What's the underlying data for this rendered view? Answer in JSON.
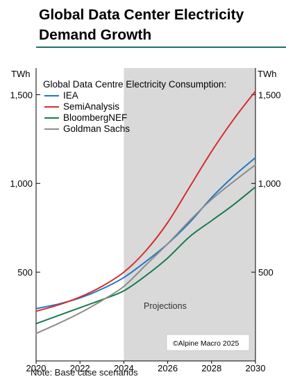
{
  "title_line1": "Global Data Center Electricity",
  "title_line2": "Demand Growth",
  "note": "Note: Base case scenarios",
  "chart_data": {
    "type": "line",
    "unit_left": "TWh",
    "unit_right": "TWh",
    "legend_title": "Global Data Centre Electricity Consumption:",
    "legend_position": "top-left",
    "projection_label": "Projections",
    "projection_start": 2024,
    "copyright": "©Alpine Macro 2025",
    "xlim": [
      2020,
      2030
    ],
    "ylim": [
      0,
      1650
    ],
    "x_ticks": [
      "2020",
      "2022",
      "2024",
      "2026",
      "2028",
      "2030"
    ],
    "y_ticks": [
      500,
      1000,
      1500
    ],
    "y_tick_labels": [
      "500",
      "1,000",
      "1,500"
    ],
    "grid": false,
    "series": [
      {
        "name": "IEA",
        "color": "#1f77c4",
        "x": [
          2020,
          2021,
          2022,
          2023,
          2024,
          2025,
          2026,
          2027,
          2028,
          2029,
          2030
        ],
        "y": [
          295,
          320,
          355,
          405,
          470,
          560,
          660,
          780,
          920,
          1040,
          1145
        ]
      },
      {
        "name": "SemiAnalysis",
        "color": "#d62d2d",
        "x": [
          2020,
          2021,
          2022,
          2023,
          2024,
          2025,
          2026,
          2027,
          2028,
          2029,
          2030
        ],
        "y": [
          280,
          315,
          360,
          420,
          500,
          620,
          780,
          980,
          1180,
          1360,
          1520
        ]
      },
      {
        "name": "BloombergNEF",
        "color": "#1a7a4c",
        "x": [
          2020,
          2021,
          2022,
          2023,
          2024,
          2025,
          2026,
          2027,
          2028,
          2029,
          2030
        ],
        "y": [
          210,
          255,
          300,
          345,
          395,
          480,
          580,
          700,
          790,
          880,
          980
        ]
      },
      {
        "name": "Goldman Sachs",
        "color": "#8c8c8c",
        "x": [
          2020,
          2021,
          2022,
          2023,
          2024,
          2025,
          2026,
          2027,
          2028,
          2029,
          2030
        ],
        "y": [
          155,
          210,
          270,
          340,
          420,
          540,
          660,
          790,
          910,
          1010,
          1105
        ]
      }
    ]
  }
}
